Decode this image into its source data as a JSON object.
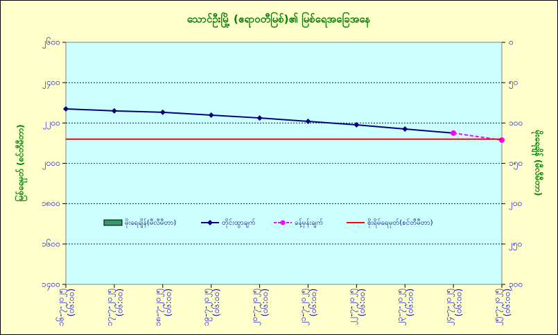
{
  "chart_data": {
    "type": "line",
    "title": "သောင်ဦးမြို့ (ဧရာဝတီမြစ်)၏ မြစ်ရေအခြေအနေ",
    "y_label": "မြစ်ရေမှတ် (စင်တီမီတာ)",
    "y2_label": "မိုးရေချိန် (မီလီမီတာ)",
    "categories": [
      "၁၆-၇-၂၀၂၅",
      "၁၇-၇-၂၀၂၅",
      "၁၈-၇-၂၀၂၅",
      "၁၉-၇-၂၀၂၅",
      "၂၀-၇-၂၀၂၅",
      "၂၁-၇-၂၀၂၅",
      "၂၂-၇-၂၀၂၅",
      "၂၃-၇-၂၀၂၅",
      "၂၄-၇-၂၀၂၅",
      "၂၅-၇-၂၀၂၅"
    ],
    "time_label": "(၀၆:၀၀)",
    "ylim": [
      1400,
      2600
    ],
    "yticks": [
      {
        "value": 1400,
        "label": "၁၄၀၀"
      },
      {
        "value": 1600,
        "label": "၁၆၀၀"
      },
      {
        "value": 1800,
        "label": "၁၈၀၀"
      },
      {
        "value": 2000,
        "label": "၂၀၀၀"
      },
      {
        "value": 2200,
        "label": "၂၂၀၀"
      },
      {
        "value": 2400,
        "label": "၂၄၀၀"
      },
      {
        "value": 2600,
        "label": "၂၆၀၀"
      }
    ],
    "y2lim": [
      300,
      0
    ],
    "y2ticks": [
      {
        "value": 0,
        "label": "၀"
      },
      {
        "value": 50,
        "label": "၅၀"
      },
      {
        "value": 100,
        "label": "၁၀၀"
      },
      {
        "value": 150,
        "label": "၁၅၀"
      },
      {
        "value": 200,
        "label": "၂၀၀"
      },
      {
        "value": 250,
        "label": "၂၅၀"
      },
      {
        "value": 300,
        "label": "၃၀၀"
      }
    ],
    "grid": true,
    "series": [
      {
        "name": "မိုးရေချိန်(မီလီမီတာ)",
        "color": "#339966",
        "kind": "bar",
        "axis": "y2",
        "values": [
          null,
          null,
          null,
          null,
          null,
          null,
          null,
          null,
          null,
          null
        ]
      },
      {
        "name": "တိုင်းထွာချက်",
        "color": "#000080",
        "kind": "line",
        "values": [
          2270,
          2260,
          2253,
          2239,
          2225,
          2208,
          2191,
          2170,
          2150,
          null
        ]
      },
      {
        "name": "ခန့်မှန်းချက်",
        "color": "#ff00ff",
        "kind": "dashed",
        "values": [
          null,
          null,
          null,
          null,
          null,
          null,
          null,
          null,
          2150,
          2115
        ]
      },
      {
        "name": "စိုးရိမ်ရေမှတ်(စင်တီမီတာ)",
        "color": "#ff0000",
        "kind": "level",
        "values": [
          2120,
          2120,
          2120,
          2120,
          2120,
          2120,
          2120,
          2120,
          2120,
          2120
        ]
      }
    ]
  }
}
